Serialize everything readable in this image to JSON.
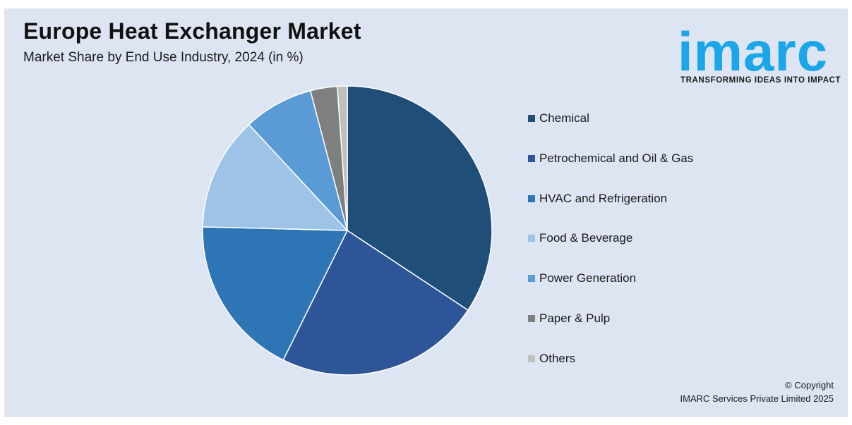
{
  "header": {
    "title": "Europe Heat Exchanger Market",
    "subtitle": "Market Share by End Use Industry, 2024 (in %)"
  },
  "logo": {
    "word": "imarc",
    "tagline": "TRANSFORMING IDEAS INTO IMPACT",
    "color": "#1aa6e8"
  },
  "footer": {
    "copyright": "© Copyright",
    "company": "IMARC Services Private Limited 2025"
  },
  "chart_data": {
    "type": "pie",
    "title": "Europe Heat Exchanger Market",
    "subtitle": "Market Share by End Use Industry, 2024 (in %)",
    "legend_position": "right",
    "start_angle": "top, clockwise",
    "slices": [
      {
        "label": "Chemical",
        "value": 34.3,
        "color": "#1f4e79"
      },
      {
        "label": "Petrochemical and Oil & Gas",
        "value": 23.0,
        "color": "#2e5597"
      },
      {
        "label": "HVAC and Refrigeration",
        "value": 18.1,
        "color": "#2e75b6"
      },
      {
        "label": "Food & Beverage",
        "value": 12.7,
        "color": "#9dc3e6"
      },
      {
        "label": "Power Generation",
        "value": 7.8,
        "color": "#5b9bd5"
      },
      {
        "label": "Paper & Pulp",
        "value": 3.0,
        "color": "#7f7f7f"
      },
      {
        "label": "Others",
        "value": 1.1,
        "color": "#bfbfbf"
      }
    ]
  }
}
